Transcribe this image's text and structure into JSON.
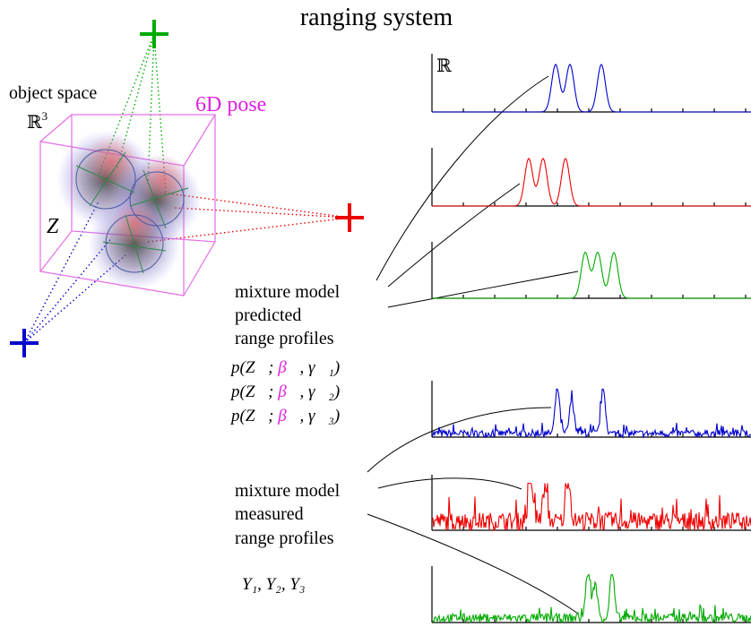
{
  "title": "ranging system",
  "object_space": {
    "label": "object space",
    "symbol": "ℝ",
    "exponent": "3"
  },
  "pose_label": "6D pose",
  "vector_label": "Z⃗",
  "plot_axis_label": "ℝ",
  "predicted": {
    "lines": [
      "mixture model",
      "predicted",
      "range profiles"
    ],
    "formulas": [
      {
        "prefix": "p(Z⃗; ",
        "pose": "β⃗",
        "suffix": ", γ⃗₁)"
      },
      {
        "prefix": "p(Z⃗; ",
        "pose": "β⃗",
        "suffix": ", γ⃗₂)"
      },
      {
        "prefix": "p(Z⃗; ",
        "pose": "β⃗",
        "suffix": ", γ⃗₃)"
      }
    ]
  },
  "measured": {
    "lines": [
      "mixture model",
      "measured",
      "range profiles"
    ],
    "observations": "Y₁, Y₂, Y₃"
  }
}
